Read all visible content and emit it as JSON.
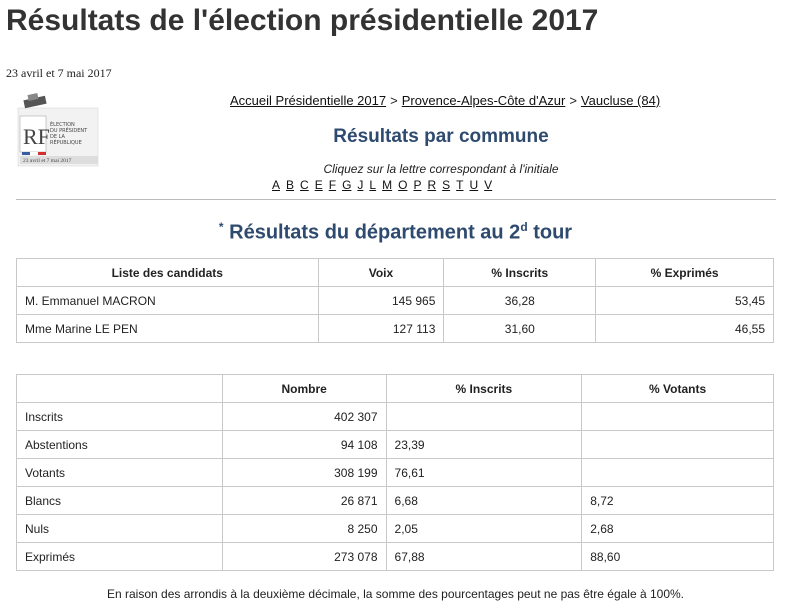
{
  "page": {
    "title": "Résultats de l'élection présidentielle 2017",
    "dates": "23 avril et 7 mai 2017"
  },
  "logo": {
    "lines": [
      "ÉLECTION",
      "DU PRÉSIDENT",
      "DE LA",
      "RÉPUBLIQUE"
    ],
    "dates": "23 avril et 7 mai 2017",
    "initials": "RF"
  },
  "breadcrumb": [
    {
      "label": "Accueil Présidentielle 2017"
    },
    {
      "label": "Provence-Alpes-Côte d'Azur"
    },
    {
      "label": "Vaucluse (84)"
    }
  ],
  "breadcrumb_separator": ">",
  "commune_section": {
    "title": "Résultats par commune",
    "instruction": "Cliquez sur la lettre correspondant à l'initiale",
    "letters": [
      "A",
      "B",
      "C",
      "E",
      "F",
      "G",
      "J",
      "L",
      "M",
      "O",
      "P",
      "R",
      "S",
      "T",
      "U",
      "V"
    ]
  },
  "department": {
    "title_prefix": "Résultats du département au 2",
    "title_sup": "d",
    "title_suffix": " tour",
    "asterisk": "*"
  },
  "candidates_table": {
    "headers": [
      "Liste des candidats",
      "Voix",
      "% Inscrits",
      "% Exprimés"
    ],
    "rows": [
      [
        "M. Emmanuel MACRON",
        "145 965",
        "36,28",
        "53,45"
      ],
      [
        "Mme Marine LE PEN",
        "127 113",
        "31,60",
        "46,55"
      ]
    ]
  },
  "stats_table": {
    "headers": [
      "",
      "Nombre",
      "% Inscrits",
      "% Votants"
    ],
    "rows": [
      [
        "Inscrits",
        "402 307",
        "",
        ""
      ],
      [
        "Abstentions",
        "94 108",
        "23,39",
        ""
      ],
      [
        "Votants",
        "308 199",
        "76,61",
        ""
      ],
      [
        "Blancs",
        "26 871",
        "6,68",
        "8,72"
      ],
      [
        "Nuls",
        "8 250",
        "2,05",
        "2,68"
      ],
      [
        "Exprimés",
        "273 078",
        "67,88",
        "88,60"
      ]
    ]
  },
  "footnote": "En raison des arrondis à la deuxième décimale, la somme des pourcentages peut ne pas être égale à 100%.",
  "colors": {
    "title": "#333333",
    "section_title": "#2e4a6e",
    "border": "#c9c9c9"
  }
}
